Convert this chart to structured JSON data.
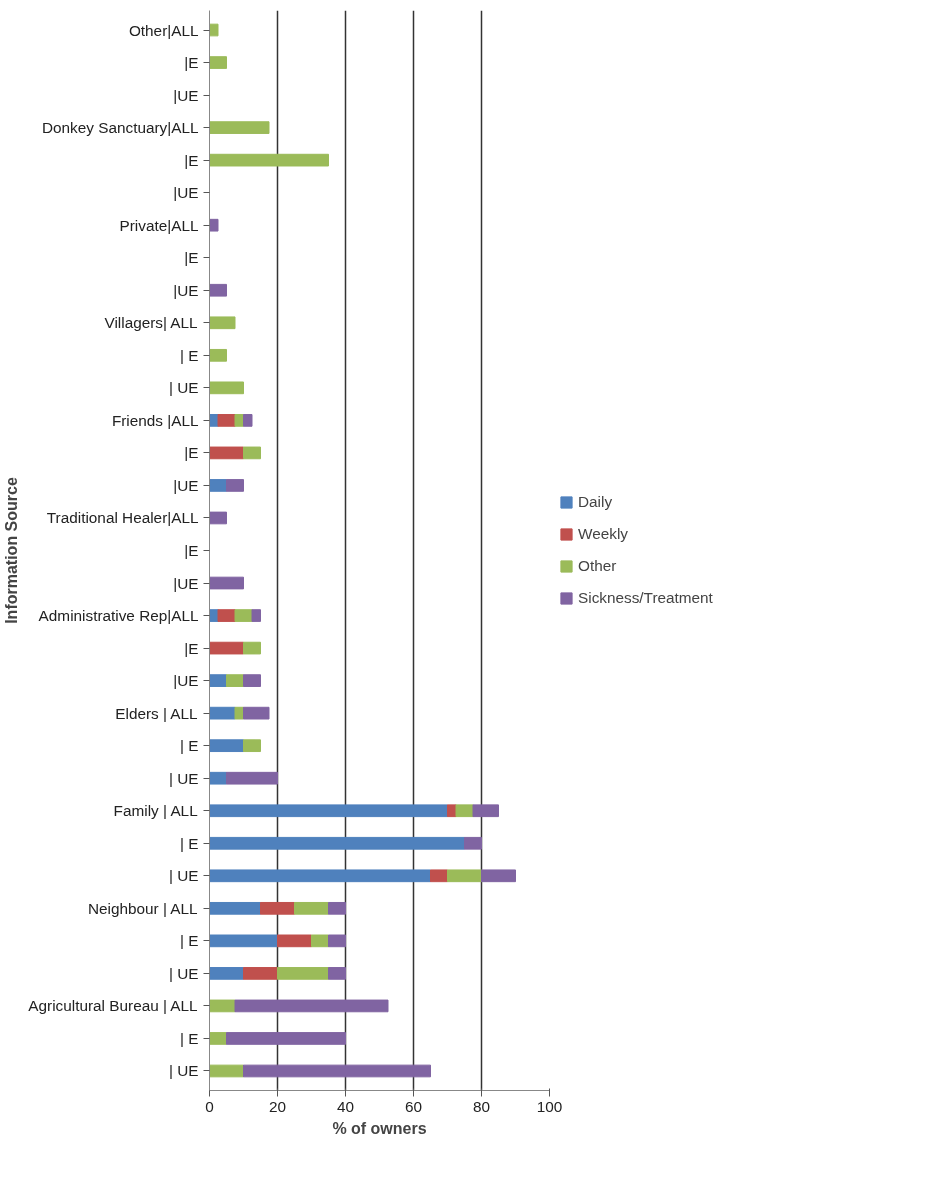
{
  "chart_data": {
    "type": "bar",
    "orientation": "horizontal",
    "stacked": true,
    "xlabel": "% of owners",
    "ylabel": "Information Source",
    "categories": [
      "Other|ALL",
      "|E",
      "|UE",
      "Donkey Sanctuary|ALL",
      "|E",
      "|UE",
      "Private|ALL",
      "|E",
      "|UE",
      "Villagers| ALL",
      "| E",
      "| UE",
      "Friends |ALL",
      "|E",
      "|UE",
      "Traditional Healer|ALL",
      "|E",
      "|UE",
      "Administrative Rep|ALL",
      "|E",
      "|UE",
      "Elders | ALL",
      "| E",
      "| UE",
      "Family | ALL",
      "| E",
      "| UE",
      "Neighbour | ALL",
      "| E",
      "| UE",
      "Agricultural Bureau | ALL",
      "| E",
      "| UE"
    ],
    "series": [
      {
        "name": "Daily",
        "color": "#4f81bd",
        "values": [
          null,
          null,
          null,
          null,
          null,
          null,
          null,
          null,
          null,
          null,
          null,
          null,
          2.5,
          null,
          5,
          null,
          null,
          null,
          2.5,
          null,
          5,
          7.5,
          10,
          5,
          70,
          75,
          65,
          15,
          20,
          10,
          null,
          null,
          null
        ]
      },
      {
        "name": "Weekly",
        "color": "#c0504d",
        "values": [
          null,
          null,
          null,
          null,
          null,
          null,
          null,
          null,
          null,
          null,
          null,
          null,
          5,
          10,
          null,
          null,
          null,
          null,
          5,
          10,
          null,
          null,
          null,
          null,
          2.5,
          null,
          5,
          10,
          10,
          10,
          null,
          null,
          null
        ]
      },
      {
        "name": "Other",
        "color": "#9bbb59",
        "values": [
          2.5,
          5,
          null,
          17.5,
          35,
          null,
          null,
          null,
          null,
          7.5,
          5,
          10,
          2.5,
          5,
          null,
          null,
          null,
          null,
          5,
          5,
          5,
          2.5,
          5,
          null,
          5,
          null,
          10,
          10,
          5,
          15,
          7.5,
          5,
          10
        ]
      },
      {
        "name": "Sickness/Treatment",
        "color": "#8064a2",
        "values": [
          null,
          null,
          null,
          null,
          null,
          null,
          2.5,
          null,
          5,
          null,
          null,
          null,
          2.5,
          null,
          5,
          5,
          null,
          10,
          2.5,
          null,
          5,
          7.5,
          null,
          15,
          7.5,
          5,
          10,
          5,
          5,
          5,
          45,
          35,
          55
        ]
      }
    ],
    "xlim": [
      0,
      100
    ],
    "xticks": [
      0,
      20,
      40,
      60,
      80,
      100
    ],
    "grid": "x",
    "legend": "right"
  }
}
